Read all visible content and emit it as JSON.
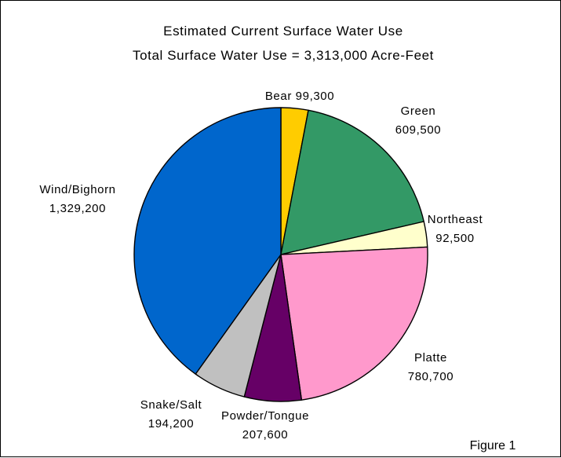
{
  "chart_data": {
    "type": "pie",
    "title": "Estimated Current Surface Water Use",
    "subtitle": "Total Surface Water Use = 3,313,000 Acre-Feet",
    "figure_label": "Figure 1",
    "start_angle_deg": 0,
    "direction": "clockwise",
    "slices": [
      {
        "name": "Bear",
        "value_text": "99,300",
        "value": 99300,
        "color": "#ffcc00"
      },
      {
        "name": "Green",
        "value_text": "609,500",
        "value": 609500,
        "color": "#339966"
      },
      {
        "name": "Northeast",
        "value_text": "92,500",
        "value": 92500,
        "color": "#ffffcc"
      },
      {
        "name": "Platte",
        "value_text": "780,700",
        "value": 780700,
        "color": "#ff99cc"
      },
      {
        "name": "Powder/Tongue",
        "value_text": "207,600",
        "value": 207600,
        "color": "#660066"
      },
      {
        "name": "Snake/Salt",
        "value_text": "194,200",
        "value": 194200,
        "color": "#c0c0c0"
      },
      {
        "name": "Wind/Bighorn",
        "value_text": "1,329,200",
        "value": 1329200,
        "color": "#0066cc"
      }
    ]
  }
}
